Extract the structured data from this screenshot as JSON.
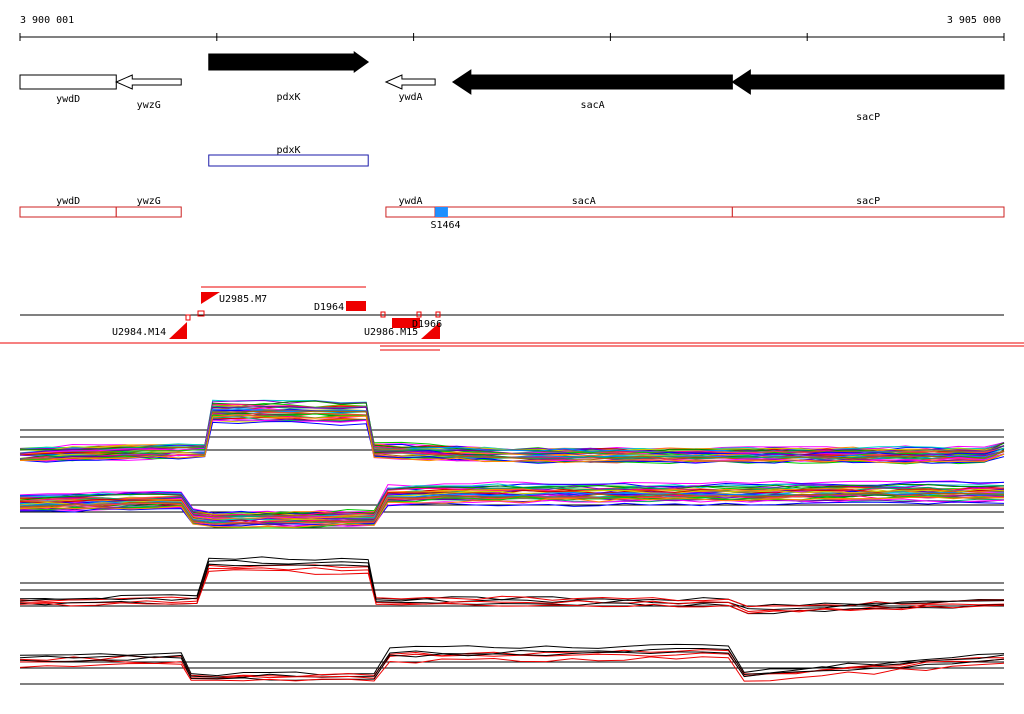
{
  "ruler": {
    "start_label": "3 900 001",
    "end_label": "3 905 000",
    "start": 3900001,
    "end": 3905000
  },
  "genes": [
    {
      "name": "ywdD",
      "start": 3900001,
      "end": 3900490,
      "strand": "+",
      "filled": false
    },
    {
      "name": "ywzG",
      "start": 3900490,
      "end": 3900820,
      "strand": "-",
      "filled": false
    },
    {
      "name": "pdxK",
      "start": 3900960,
      "end": 3901770,
      "strand": "+",
      "filled": true
    },
    {
      "name": "ywdA",
      "start": 3901860,
      "end": 3902110,
      "strand": "-",
      "filled": false
    },
    {
      "name": "sacA",
      "start": 3902200,
      "end": 3903620,
      "strand": "-",
      "filled": true
    },
    {
      "name": "sacP",
      "start": 3903620,
      "end": 3905000,
      "strand": "-",
      "filled": true
    }
  ],
  "annotation_blue": {
    "name": "pdxK",
    "start": 3900960,
    "end": 3901770
  },
  "annotation_red": [
    {
      "name": "ywdD",
      "start": 3900001,
      "end": 3900490
    },
    {
      "name": "ywzG",
      "start": 3900490,
      "end": 3900820
    },
    {
      "name": "ywdA",
      "start": 3901860,
      "end": 3902110
    },
    {
      "name": "sacA",
      "start": 3902110,
      "end": 3903620
    },
    {
      "name": "sacP",
      "start": 3903620,
      "end": 3905000
    }
  ],
  "site": {
    "name": "S1464",
    "start": 3902110,
    "end": 3902175,
    "color": "#1e90ff"
  },
  "transcripts": {
    "labels": {
      "u2984": "U2984.M14",
      "u2985": "U2985.M7",
      "d1964": "D1964",
      "u2986": "U2986.M15",
      "overlap": "D1966"
    }
  },
  "expression_tracks": [
    {
      "name": "track-1",
      "segments": [
        [
          3900001,
          0.0
        ],
        [
          3900400,
          0.05
        ],
        [
          3900940,
          0.1
        ],
        [
          3900980,
          1.0
        ],
        [
          3901760,
          1.0
        ],
        [
          3901800,
          0.1
        ],
        [
          3902500,
          0.0
        ],
        [
          3904900,
          0.0
        ],
        [
          3905000,
          0.15
        ]
      ],
      "style": "multi"
    },
    {
      "name": "track-2",
      "segments": [
        [
          3900001,
          0.5
        ],
        [
          3900700,
          0.6
        ],
        [
          3900820,
          0.6
        ],
        [
          3900880,
          0.1
        ],
        [
          3900990,
          0.0
        ],
        [
          3901800,
          0.05
        ],
        [
          3901870,
          0.75
        ],
        [
          3902300,
          0.8
        ],
        [
          3905000,
          0.85
        ]
      ],
      "style": "multi"
    },
    {
      "name": "track-3",
      "segments": [
        [
          3900001,
          0.0
        ],
        [
          3900900,
          0.05
        ],
        [
          3900960,
          1.0
        ],
        [
          3901770,
          0.95
        ],
        [
          3901810,
          0.05
        ],
        [
          3903600,
          0.0
        ],
        [
          3903700,
          -0.2
        ],
        [
          3905000,
          0.0
        ]
      ],
      "style": "pair"
    },
    {
      "name": "track-4",
      "segments": [
        [
          3900001,
          0.6
        ],
        [
          3900820,
          0.7
        ],
        [
          3900870,
          0.1
        ],
        [
          3901800,
          0.1
        ],
        [
          3901880,
          0.8
        ],
        [
          3903600,
          0.9
        ],
        [
          3903680,
          0.1
        ],
        [
          3905000,
          0.7
        ]
      ],
      "style": "pair"
    }
  ],
  "colors": {
    "gene_fill": "#000000",
    "annotation_blue": "#1a1aa8",
    "annotation_red": "#cc2222",
    "transcript_red": "#ee0000"
  }
}
